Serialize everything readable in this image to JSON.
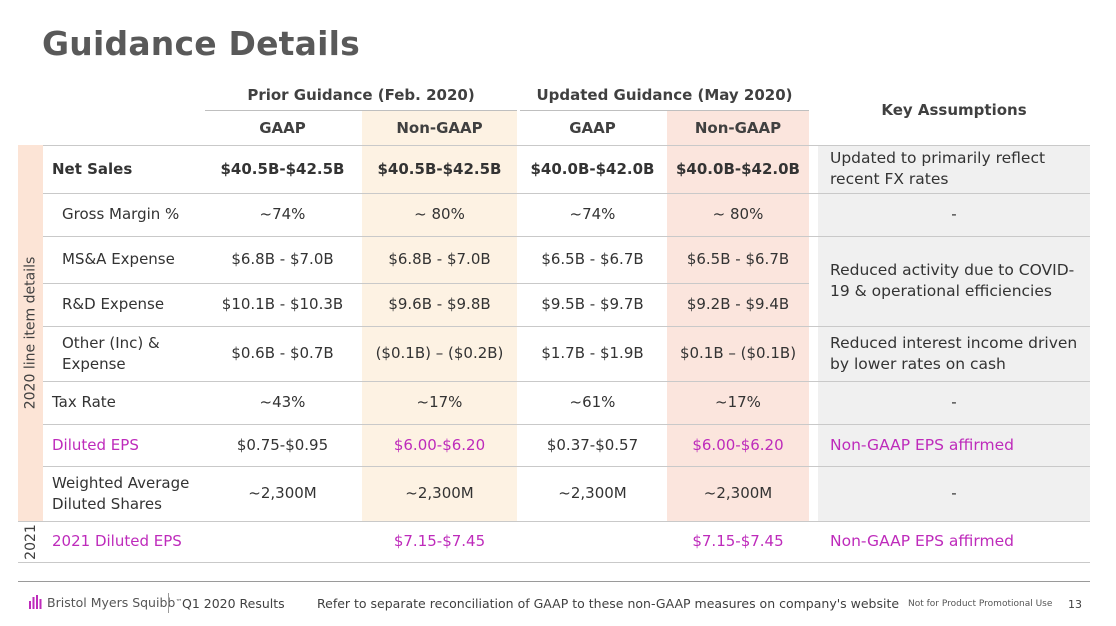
{
  "title": "Guidance Details",
  "colors": {
    "accent": "#be2bbb",
    "prior_shade": "#fdf2e3",
    "updated_shade": "#fbe5dd",
    "key_shade": "#f0f0f0"
  },
  "headers": {
    "prior": "Prior Guidance (Feb. 2020)",
    "updated": "Updated Guidance (May 2020)",
    "key_assumptions": "Key Assumptions",
    "gaap": "GAAP",
    "non_gaap": "Non-GAAP"
  },
  "sidebar": {
    "main": "2020 line item details",
    "year": "2021"
  },
  "rows": [
    {
      "label": "Net Sales",
      "prior_gaap": "$40.5B-$42.5B",
      "prior_non_gaap": "$40.5B-$42.5B",
      "upd_gaap": "$40.0B-$42.0B",
      "upd_non_gaap": "$40.0B-$42.0B"
    },
    {
      "label": "Gross Margin %",
      "prior_gaap": "~74%",
      "prior_non_gaap": "~ 80%",
      "upd_gaap": "~74%",
      "upd_non_gaap": "~ 80%"
    },
    {
      "label": "MS&A Expense",
      "prior_gaap": "$6.8B - $7.0B",
      "prior_non_gaap": "$6.8B - $7.0B",
      "upd_gaap": "$6.5B - $6.7B",
      "upd_non_gaap": "$6.5B - $6.7B"
    },
    {
      "label": "R&D Expense",
      "prior_gaap": "$10.1B - $10.3B",
      "prior_non_gaap": "$9.6B - $9.8B",
      "upd_gaap": "$9.5B - $9.7B",
      "upd_non_gaap": "$9.2B - $9.4B"
    },
    {
      "label": "Other (Inc) & Expense",
      "prior_gaap": "$0.6B - $0.7B",
      "prior_non_gaap": "($0.1B) – ($0.2B)",
      "upd_gaap": "$1.7B - $1.9B",
      "upd_non_gaap": "$0.1B – ($0.1B)"
    },
    {
      "label": "Tax Rate",
      "prior_gaap": "~43%",
      "prior_non_gaap": "~17%",
      "upd_gaap": "~61%",
      "upd_non_gaap": "~17%"
    },
    {
      "label": "Diluted EPS",
      "prior_gaap": "$0.75-$0.95",
      "prior_non_gaap": "$6.00-$6.20",
      "upd_gaap": "$0.37-$0.57",
      "upd_non_gaap": "$6.00-$6.20"
    },
    {
      "label": "Weighted Average Diluted Shares",
      "prior_gaap": "~2,300M",
      "prior_non_gaap": "~2,300M",
      "upd_gaap": "~2,300M",
      "upd_non_gaap": "~2,300M"
    },
    {
      "label": "2021 Diluted EPS",
      "prior_gaap": "",
      "prior_non_gaap": "$7.15-$7.45",
      "upd_gaap": "",
      "upd_non_gaap": "$7.15-$7.45"
    }
  ],
  "notes": {
    "net_sales": "Updated to primarily reflect recent FX rates",
    "gross_margin": "-",
    "opex": "Reduced activity due to COVID-19 & operational efficiencies",
    "other": "Reduced interest income driven by lower rates on cash",
    "tax_rate": "-",
    "diluted_eps": "Non-GAAP EPS affirmed",
    "shares": "-",
    "eps_2021": "Non-GAAP EPS affirmed"
  },
  "footer": {
    "logo_text": "Bristol Myers Squibb",
    "trademark": "™",
    "period": "Q1 2020 Results",
    "note": "Refer to separate reconciliation of GAAP to these non-GAAP measures on company's website",
    "disclaimer": "Not for Product Promotional Use",
    "page_number": "13"
  }
}
